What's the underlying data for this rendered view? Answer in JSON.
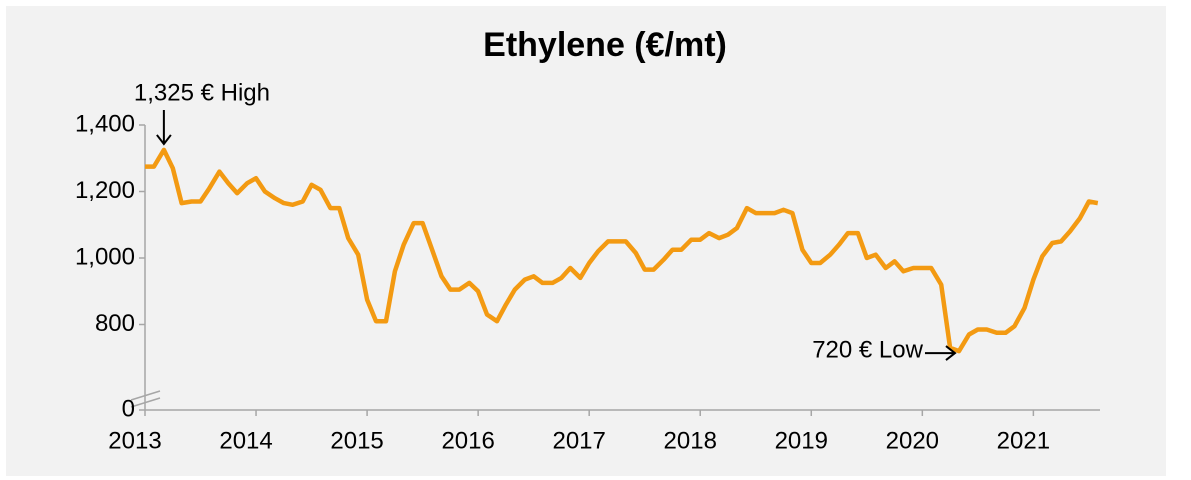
{
  "chart_data": {
    "type": "line",
    "title": "Ethylene (€/mt)",
    "x": [
      2013,
      2013.08,
      2013.17,
      2013.25,
      2013.33,
      2013.42,
      2013.5,
      2013.58,
      2013.67,
      2013.75,
      2013.83,
      2013.92,
      2014,
      2014.08,
      2014.17,
      2014.25,
      2014.33,
      2014.42,
      2014.5,
      2014.58,
      2014.67,
      2014.75,
      2014.83,
      2014.92,
      2015,
      2015.08,
      2015.17,
      2015.25,
      2015.33,
      2015.42,
      2015.5,
      2015.58,
      2015.67,
      2015.75,
      2015.83,
      2015.92,
      2016,
      2016.08,
      2016.17,
      2016.25,
      2016.33,
      2016.42,
      2016.5,
      2016.58,
      2016.67,
      2016.75,
      2016.83,
      2016.92,
      2017,
      2017.08,
      2017.17,
      2017.25,
      2017.33,
      2017.42,
      2017.5,
      2017.58,
      2017.67,
      2017.75,
      2017.83,
      2017.92,
      2018,
      2018.08,
      2018.17,
      2018.25,
      2018.33,
      2018.42,
      2018.5,
      2018.58,
      2018.67,
      2018.75,
      2018.83,
      2018.92,
      2019,
      2019.08,
      2019.17,
      2019.25,
      2019.33,
      2019.42,
      2019.5,
      2019.58,
      2019.67,
      2019.75,
      2019.83,
      2019.92,
      2020,
      2020.08,
      2020.17,
      2020.25,
      2020.33,
      2020.42,
      2020.5,
      2020.58,
      2020.67,
      2020.75,
      2020.83,
      2020.92,
      2021,
      2021.08,
      2021.17,
      2021.25,
      2021.33,
      2021.42,
      2021.5,
      2021.58
    ],
    "series": [
      {
        "name": "Ethylene",
        "color": "#f39a12",
        "values": [
          1275,
          1275,
          1325,
          1270,
          1165,
          1170,
          1170,
          1210,
          1260,
          1225,
          1195,
          1225,
          1240,
          1200,
          1180,
          1165,
          1160,
          1170,
          1220,
          1205,
          1150,
          1150,
          1060,
          1010,
          875,
          810,
          810,
          960,
          1040,
          1105,
          1105,
          1030,
          945,
          905,
          905,
          925,
          900,
          830,
          810,
          860,
          905,
          935,
          945,
          925,
          925,
          940,
          970,
          940,
          985,
          1020,
          1050,
          1050,
          1050,
          1015,
          965,
          965,
          995,
          1025,
          1025,
          1055,
          1055,
          1075,
          1060,
          1070,
          1090,
          1150,
          1135,
          1135,
          1135,
          1145,
          1135,
          1025,
          985,
          985,
          1010,
          1040,
          1075,
          1075,
          1000,
          1010,
          970,
          990,
          960,
          970,
          970,
          970,
          920,
          730,
          720,
          770,
          785,
          785,
          775,
          775,
          795,
          850,
          935,
          1005,
          1045,
          1050,
          1080,
          1120,
          1170,
          1165
        ]
      }
    ],
    "xlim": [
      2013,
      2021.6
    ],
    "xticks": [
      2013,
      2014,
      2015,
      2016,
      2017,
      2018,
      2019,
      2020,
      2021
    ],
    "ylim": [
      0,
      1400
    ],
    "axis_break": [
      0,
      600
    ],
    "yticks": [
      0,
      800,
      {
        "value": 1000,
        "label": "1,000"
      },
      {
        "value": 1200,
        "label": "1,200"
      },
      {
        "value": 1400,
        "label": "1,400"
      }
    ],
    "annotations": [
      {
        "text": "1,325 € High",
        "point": 2
      },
      {
        "text": "720 € Low",
        "point": 88
      }
    ]
  }
}
